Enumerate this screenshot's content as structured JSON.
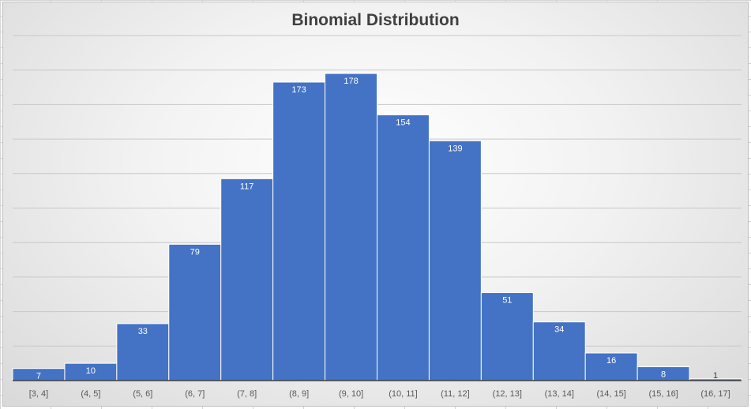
{
  "chart_data": {
    "type": "bar",
    "title": "Binomial Distribution",
    "xlabel": "",
    "ylabel": "",
    "categories": [
      "[3, 4]",
      "(4, 5]",
      "(5, 6]",
      "(6, 7]",
      "(7, 8]",
      "(8, 9]",
      "(9, 10]",
      "(10, 11]",
      "(11, 12]",
      "(12, 13]",
      "(13, 14]",
      "(14, 15]",
      "(15, 16]",
      "(16, 17]"
    ],
    "values": [
      7,
      10,
      33,
      79,
      117,
      173,
      178,
      154,
      139,
      51,
      34,
      16,
      8,
      1
    ],
    "ylim": [
      0,
      200
    ],
    "grid": true,
    "legend": "none",
    "bar_color": "#4472c4",
    "data_labels": true
  }
}
